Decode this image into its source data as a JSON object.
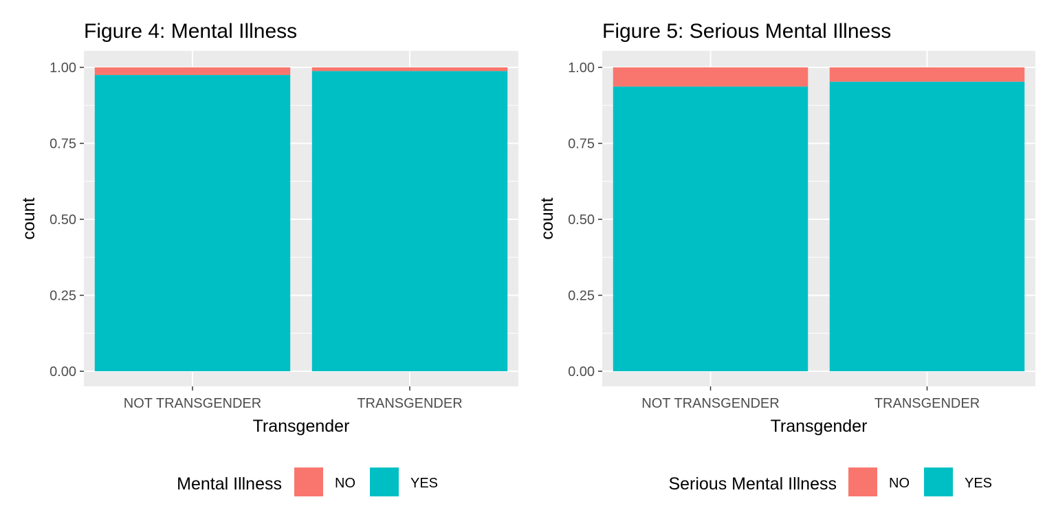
{
  "chart_data": [
    {
      "type": "bar",
      "stacked": true,
      "title": "Figure 4: Mental Illness",
      "xlabel": "Transgender",
      "ylabel": "count",
      "categories": [
        "NOT TRANSGENDER",
        "TRANSGENDER"
      ],
      "ylim": [
        0,
        1.05
      ],
      "yticks": [
        "0.00",
        "0.25",
        "0.50",
        "0.75",
        "1.00"
      ],
      "ytick_values": [
        0,
        0.25,
        0.5,
        0.75,
        1.0
      ],
      "series": [
        {
          "name": "YES",
          "color": "#00BFC4",
          "values": [
            0.975,
            0.988
          ]
        },
        {
          "name": "NO",
          "color": "#F8766D",
          "values": [
            0.025,
            0.012
          ]
        }
      ],
      "legend": {
        "title": "Mental Illness",
        "position": "bottom",
        "entries": [
          "NO",
          "YES"
        ]
      },
      "grid": true
    },
    {
      "type": "bar",
      "stacked": true,
      "title": "Figure 5: Serious Mental Illness",
      "xlabel": "Transgender",
      "ylabel": "count",
      "categories": [
        "NOT TRANSGENDER",
        "TRANSGENDER"
      ],
      "ylim": [
        0,
        1.05
      ],
      "yticks": [
        "0.00",
        "0.25",
        "0.50",
        "0.75",
        "1.00"
      ],
      "ytick_values": [
        0,
        0.25,
        0.5,
        0.75,
        1.0
      ],
      "series": [
        {
          "name": "YES",
          "color": "#00BFC4",
          "values": [
            0.937,
            0.953
          ]
        },
        {
          "name": "NO",
          "color": "#F8766D",
          "values": [
            0.063,
            0.047
          ]
        }
      ],
      "legend": {
        "title": "Serious Mental Illness",
        "position": "bottom",
        "entries": [
          "NO",
          "YES"
        ]
      },
      "grid": true
    }
  ]
}
